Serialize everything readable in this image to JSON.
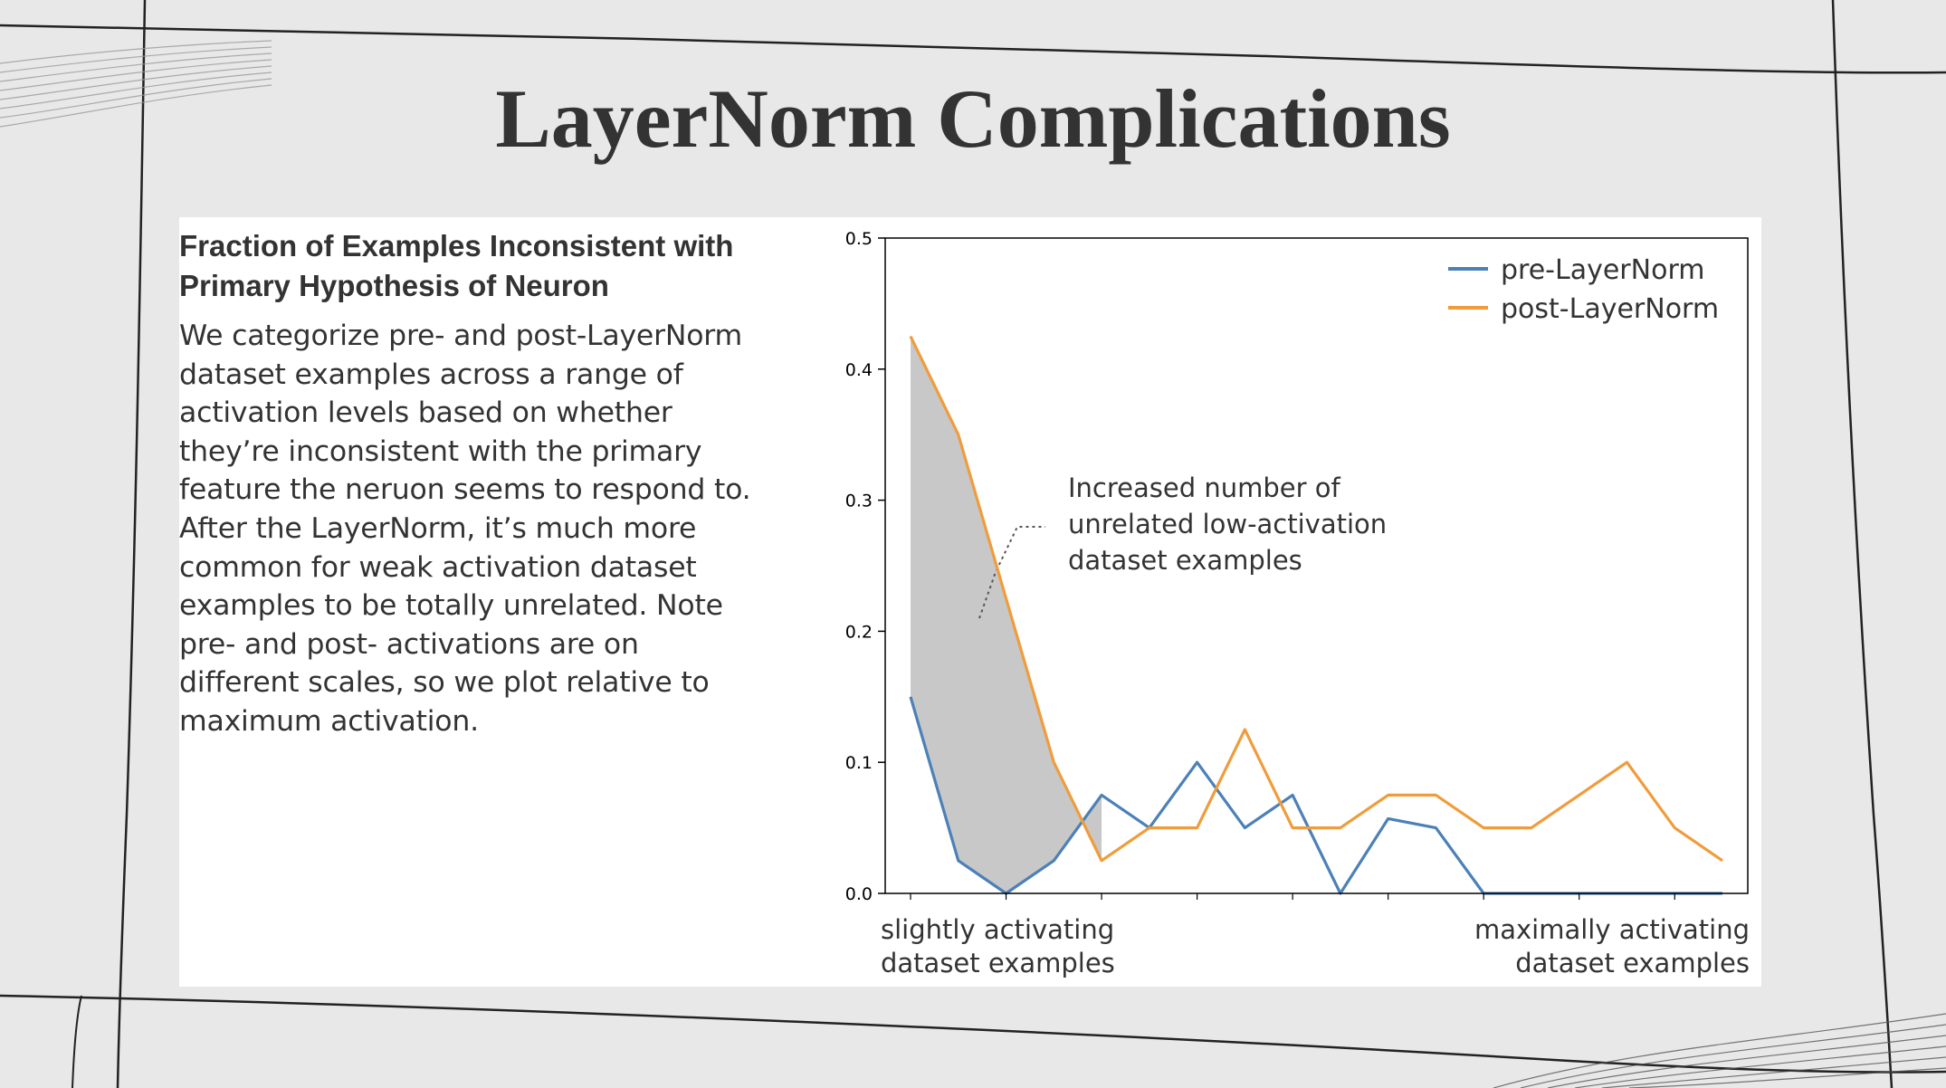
{
  "slide": {
    "title": "LayerNorm Complications",
    "background_color": "#e8e8e8",
    "panel_color": "#ffffff"
  },
  "text": {
    "heading_line1": "Fraction of Examples Inconsistent with",
    "heading_line2": "Primary Hypothesis of Neuron",
    "body_lines": [
      "We categorize pre- and post-LayerNorm",
      "dataset examples across a range of",
      "activation levels based on whether",
      "they’re inconsistent with the primary",
      "feature the neruon seems to respond to.",
      "After the LayerNorm, it’s much more",
      "common for weak activation dataset",
      "examples to be totally unrelated. Note",
      "pre- and post- activations are on",
      "different scales, so we plot relative to",
      "maximum activation."
    ]
  },
  "chart_data": {
    "type": "line",
    "title": "",
    "xlabel_left": [
      "slightly activating",
      "dataset examples"
    ],
    "xlabel_right": [
      "maximally activating",
      "dataset examples"
    ],
    "ylabel": "",
    "ylim": [
      0,
      0.5
    ],
    "yticks": [
      "0.0",
      "0.1",
      "0.2",
      "0.3",
      "0.4",
      "0.5"
    ],
    "x": [
      0,
      1,
      2,
      3,
      4,
      5,
      6,
      7,
      8,
      9,
      10,
      11,
      12,
      13,
      14,
      15,
      16,
      17
    ],
    "series": [
      {
        "name": "pre-LayerNorm",
        "color": "#4c80b8",
        "values": [
          0.15,
          0.025,
          0.0,
          0.025,
          0.075,
          0.05,
          0.1,
          0.05,
          0.075,
          0.0,
          0.057,
          0.05,
          0.0,
          0.0,
          0.0,
          0.0,
          0.0,
          0.0
        ]
      },
      {
        "name": "post-LayerNorm",
        "color": "#f09c3c",
        "values": [
          0.425,
          0.35,
          0.225,
          0.1,
          0.025,
          0.05,
          0.05,
          0.125,
          0.05,
          0.05,
          0.075,
          0.075,
          0.05,
          0.05,
          0.075,
          0.1,
          0.05,
          0.025
        ]
      }
    ],
    "shaded_region": {
      "x_from": 0,
      "x_to": 4,
      "color": "#c8c8c8"
    },
    "annotation": [
      "Increased number of",
      "unrelated low-activation",
      "dataset examples"
    ],
    "legend_position": "top-right",
    "grid": false
  }
}
